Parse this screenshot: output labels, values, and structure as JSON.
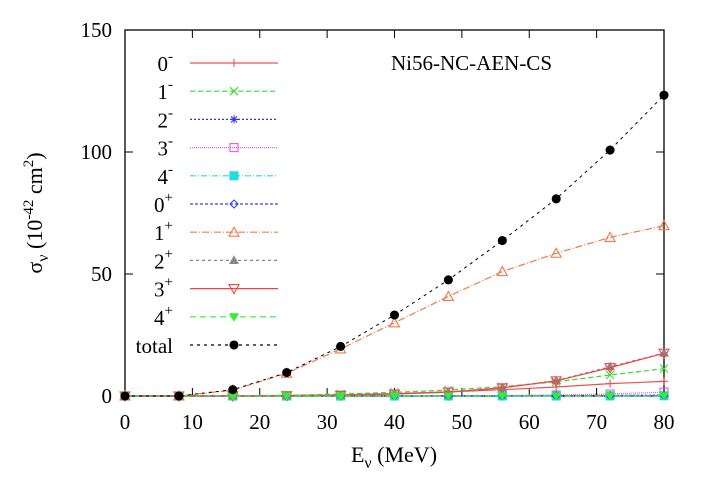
{
  "chart_data": {
    "type": "line",
    "title": "",
    "annotation": "Ni56-NC-AEN-CS",
    "xlabel": "E_ν (MeV)",
    "xlabel_main": "E",
    "xlabel_sub": "ν",
    "xlabel_unit": " (MeV)",
    "ylabel": "σ_ν (10^-42 cm^2)",
    "ylabel_main": "σ",
    "ylabel_sub": "ν",
    "ylabel_pre": " (10",
    "ylabel_exp": "-42",
    "ylabel_mid": " cm",
    "ylabel_exp2": "2",
    "ylabel_post": ")",
    "xlim": [
      0,
      80
    ],
    "ylim": [
      0,
      150
    ],
    "xticks": [
      0,
      10,
      20,
      30,
      40,
      50,
      60,
      70,
      80
    ],
    "yticks": [
      0,
      50,
      100,
      150
    ],
    "grid": false,
    "legend_position": "upper-left-inside",
    "x": [
      0,
      8,
      16,
      24,
      32,
      40,
      48,
      56,
      64,
      72,
      80
    ],
    "series": [
      {
        "name": "0-",
        "label_main": "0",
        "label_sup": "-",
        "color": "#f05050",
        "dash": "",
        "marker": "plus",
        "values": [
          0,
          0,
          0.05,
          0.2,
          0.5,
          1.0,
          1.7,
          2.6,
          3.7,
          5.1,
          6.0
        ]
      },
      {
        "name": "1-",
        "label_main": "1",
        "label_sup": "-",
        "color": "#33dd33",
        "dash": "5,3",
        "marker": "cross",
        "values": [
          0,
          0,
          0.05,
          0.3,
          0.8,
          1.5,
          2.4,
          3.8,
          5.8,
          8.6,
          11.2
        ]
      },
      {
        "name": "2-",
        "label_main": "2",
        "label_sup": "-",
        "color": "#3333ee",
        "dash": "2,2",
        "marker": "star",
        "values": [
          0,
          0,
          0,
          0,
          0,
          0,
          0.05,
          0.1,
          0.15,
          0.25,
          0.35
        ]
      },
      {
        "name": "3-",
        "label_main": "3",
        "label_sup": "-",
        "color": "#ee55ee",
        "dash": "1,1",
        "marker": "square-open",
        "values": [
          0,
          0,
          0,
          0,
          0.02,
          0.05,
          0.1,
          0.2,
          0.4,
          0.8,
          1.6
        ]
      },
      {
        "name": "4-",
        "label_main": "4",
        "label_sup": "-",
        "color": "#22dddd",
        "dash": "6,2,1,2",
        "marker": "square-filled",
        "values": [
          0,
          0,
          0,
          0,
          0,
          0,
          0,
          0,
          0.02,
          0.05,
          0.1
        ]
      },
      {
        "name": "0+",
        "label_main": "0",
        "label_sup": "+",
        "color": "#3344ee",
        "dash": "3,2",
        "marker": "diamond-open",
        "values": [
          0,
          0,
          0,
          0,
          0,
          0,
          0,
          0.02,
          0.05,
          0.1,
          0.15
        ]
      },
      {
        "name": "1+",
        "label_main": "1",
        "label_sup": "+",
        "color": "#f07a4a",
        "dash": "7,2,1,2",
        "marker": "triangle-open",
        "values": [
          0,
          0,
          2.4,
          9.3,
          19.3,
          30.0,
          40.8,
          51.0,
          58.5,
          65.0,
          69.8
        ]
      },
      {
        "name": "2+",
        "label_main": "2",
        "label_sup": "+",
        "color": "#888888",
        "dash": "3,3",
        "marker": "triangle-filled",
        "values": [
          0,
          0,
          0.02,
          0.1,
          0.3,
          0.8,
          1.6,
          3.4,
          6.3,
          12.0,
          17.6
        ]
      },
      {
        "name": "3+",
        "label_main": "3",
        "label_sup": "+",
        "color": "#ee4444",
        "dash": "",
        "marker": "triangle-down-open",
        "values": [
          0,
          0,
          0.02,
          0.1,
          0.3,
          0.8,
          1.6,
          3.3,
          6.2,
          11.6,
          17.5
        ]
      },
      {
        "name": "4+",
        "label_main": "4",
        "label_sup": "+",
        "color": "#33ee33",
        "dash": "6,4",
        "marker": "triangle-down-filled",
        "values": [
          0,
          0,
          0,
          0,
          0,
          0,
          0,
          0.02,
          0.05,
          0.08,
          0.1
        ]
      },
      {
        "name": "total",
        "label_main": "total",
        "label_sup": "",
        "color": "#000000",
        "dash": "3,4",
        "marker": "circle-filled",
        "values": [
          0,
          0,
          2.6,
          9.6,
          20.3,
          33.2,
          47.6,
          63.7,
          80.8,
          100.8,
          123.3
        ]
      }
    ]
  }
}
